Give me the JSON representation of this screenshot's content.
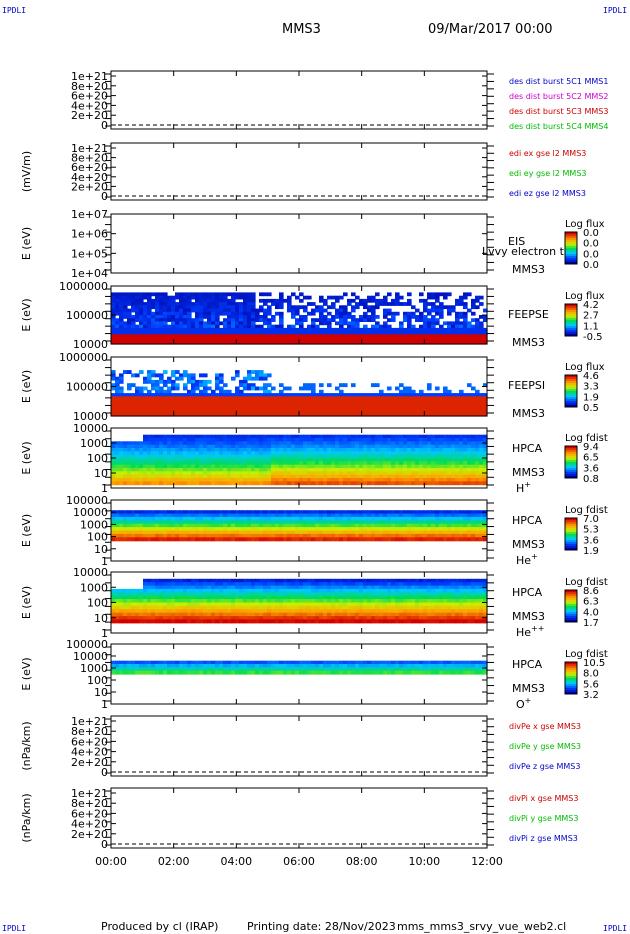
{
  "header": {
    "corner_tl": "IPDLI",
    "corner_tr": "IPDLI",
    "corner_bl": "IPDLI",
    "corner_br": "IPDLI",
    "spacecraft": "MMS3",
    "date": "09/Mar/2017 00:00"
  },
  "footer": {
    "produced_by": "Produced by cl (IRAP)",
    "printing_date": "Printing date: 28/Nov/2023",
    "script": "mms_mms3_srvy_vue_web2.cl"
  },
  "chart_data": {
    "type": "stack",
    "x_axis": {
      "ticks": [
        "00:00",
        "02:00",
        "04:00",
        "06:00",
        "08:00",
        "10:00",
        "12:00"
      ],
      "range_hours": [
        0,
        12
      ]
    },
    "panels": [
      {
        "id": "des_dist",
        "type": "line",
        "ylabel": "",
        "y_ticks": [
          "1e+21",
          "8e+20",
          "6e+20",
          "4e+20",
          "2e+20",
          "0"
        ],
        "dashed_zero": true,
        "legend": [
          {
            "label": "des dist burst 5C1 MMS1",
            "color": "#0000cc"
          },
          {
            "label": "des dist burst 5C2 MMS2",
            "color": "#cc00cc"
          },
          {
            "label": "des dist burst 5C3 MMS3",
            "color": "#cc0000"
          },
          {
            "label": "des dist burst 5C4 MMS4",
            "color": "#00bb00"
          }
        ]
      },
      {
        "id": "edi_e",
        "type": "line",
        "ylabel": "(mV/m)",
        "y_ticks": [
          "1e+21",
          "8e+20",
          "6e+20",
          "4e+20",
          "2e+20",
          "0"
        ],
        "dashed_zero": true,
        "legend": [
          {
            "label": "edi ex gse l2 MMS3",
            "color": "#cc0000"
          },
          {
            "label": "edi ey gse l2 MMS3",
            "color": "#00bb00"
          },
          {
            "label": "edi ez gse l2 MMS3",
            "color": "#0000cc"
          }
        ]
      },
      {
        "id": "eis",
        "type": "heatmap",
        "ylabel": "E (eV)",
        "y_ticks": [
          "1e+07",
          "1e+06",
          "1e+05",
          "1e+04"
        ],
        "y_log_range": [
          4,
          7
        ],
        "right_labels": [
          "EIS",
          "MMS3"
        ],
        "overlay_label": "Lvvy electron to",
        "colorbar": {
          "title": "Log flux",
          "ticks": [
            "0.0",
            "0.0",
            "0.0",
            "0.0"
          ]
        },
        "fill": "empty"
      },
      {
        "id": "feepse",
        "type": "heatmap",
        "ylabel": "E (eV)",
        "y_ticks": [
          "1000000",
          "100000",
          "10000"
        ],
        "y_log_range": [
          4,
          6
        ],
        "right_labels": [
          "FEEPSE",
          "MMS3"
        ],
        "colorbar": {
          "title": "Log flux",
          "ticks": [
            "4.2",
            "2.7",
            "1.1",
            "-0.5"
          ]
        },
        "fill": "feeps_e"
      },
      {
        "id": "feepsi",
        "type": "heatmap",
        "ylabel": "E (eV)",
        "y_ticks": [
          "1000000",
          "100000",
          "10000"
        ],
        "y_log_range": [
          4,
          6
        ],
        "right_labels": [
          "FEEPSI",
          "MMS3"
        ],
        "colorbar": {
          "title": "Log flux",
          "ticks": [
            "4.6",
            "3.3",
            "1.9",
            "0.5"
          ]
        },
        "fill": "feeps_i"
      },
      {
        "id": "hpca_h",
        "type": "heatmap",
        "ylabel": "E (eV)",
        "y_ticks": [
          "10000",
          "1000",
          "100",
          "10",
          "1"
        ],
        "y_log_range": [
          0,
          4.3
        ],
        "right_labels": [
          "HPCA",
          "MMS3"
        ],
        "species": "H",
        "species_charge": "+",
        "colorbar": {
          "title": "Log fdist",
          "ticks": [
            "9.4",
            "6.5",
            "3.6",
            "0.8"
          ]
        },
        "fill": "hpca_h"
      },
      {
        "id": "hpca_he",
        "type": "heatmap",
        "ylabel": "E (eV)",
        "y_ticks": [
          "100000",
          "10000",
          "1000",
          "100",
          "10",
          "1"
        ],
        "y_log_range": [
          0,
          5
        ],
        "right_labels": [
          "HPCA",
          "MMS3"
        ],
        "species": "He",
        "species_charge": "+",
        "colorbar": {
          "title": "Log fdist",
          "ticks": [
            "7.0",
            "5.3",
            "3.6",
            "1.9"
          ]
        },
        "fill": "hpca_he"
      },
      {
        "id": "hpca_he2",
        "type": "heatmap",
        "ylabel": "E (eV)",
        "y_ticks": [
          "10000",
          "1000",
          "100",
          "10",
          "1"
        ],
        "y_log_range": [
          0,
          4.3
        ],
        "right_labels": [
          "HPCA",
          "MMS3"
        ],
        "species": "He",
        "species_charge": "++",
        "colorbar": {
          "title": "Log fdist",
          "ticks": [
            "8.6",
            "6.3",
            "4.0",
            "1.7"
          ]
        },
        "fill": "hpca_he2"
      },
      {
        "id": "hpca_o",
        "type": "heatmap",
        "ylabel": "E (eV)",
        "y_ticks": [
          "100000",
          "10000",
          "1000",
          "100",
          "10",
          "1"
        ],
        "y_log_range": [
          0,
          5
        ],
        "right_labels": [
          "HPCA",
          "MMS3"
        ],
        "species": "O",
        "species_charge": "+",
        "colorbar": {
          "title": "Log fdist",
          "ticks": [
            "10.5",
            "8.0",
            "5.6",
            "3.2"
          ]
        },
        "fill": "hpca_o"
      },
      {
        "id": "divpe",
        "type": "line",
        "ylabel": "(nPa/km)",
        "y_ticks": [
          "1e+21",
          "8e+20",
          "6e+20",
          "4e+20",
          "2e+20",
          "0"
        ],
        "dashed_zero": true,
        "legend": [
          {
            "label": "divPe x gse MMS3",
            "color": "#cc0000"
          },
          {
            "label": "divPe y gse MMS3",
            "color": "#00bb00"
          },
          {
            "label": "divPe z gse MMS3",
            "color": "#0000cc"
          }
        ]
      },
      {
        "id": "divpi",
        "type": "line",
        "ylabel": "(nPa/km)",
        "y_ticks": [
          "1e+21",
          "8e+20",
          "6e+20",
          "4e+20",
          "2e+20",
          "0"
        ],
        "dashed_zero": true,
        "legend": [
          {
            "label": "divPi x gse MMS3",
            "color": "#cc0000"
          },
          {
            "label": "divPi y gse MMS3",
            "color": "#00bb00"
          },
          {
            "label": "divPi z gse MMS3",
            "color": "#0000cc"
          }
        ]
      }
    ]
  }
}
